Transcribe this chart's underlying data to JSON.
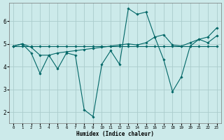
{
  "xlabel": "Humidex (Indice chaleur)",
  "bg_color": "#cceaea",
  "grid_color": "#aacccc",
  "line_color": "#006666",
  "xlim": [
    -0.5,
    23.5
  ],
  "ylim": [
    1.5,
    6.8
  ],
  "yticks": [
    2,
    3,
    4,
    5,
    6
  ],
  "xticks": [
    0,
    1,
    2,
    3,
    4,
    5,
    6,
    7,
    8,
    9,
    10,
    11,
    12,
    13,
    14,
    15,
    16,
    17,
    18,
    19,
    20,
    21,
    22,
    23
  ],
  "lines": [
    {
      "x": [
        0,
        1,
        2,
        3,
        4,
        5,
        6,
        7,
        8,
        9,
        10,
        11,
        12,
        13,
        14,
        15,
        16,
        17,
        18,
        19,
        20,
        21,
        22,
        23
      ],
      "y": [
        4.9,
        4.9,
        4.9,
        4.9,
        4.9,
        4.9,
        4.9,
        4.9,
        4.9,
        4.9,
        4.9,
        4.9,
        4.9,
        4.9,
        4.9,
        4.9,
        4.9,
        4.9,
        4.9,
        4.9,
        4.9,
        4.9,
        4.9,
        4.9
      ]
    },
    {
      "x": [
        0,
        1,
        2,
        3,
        4,
        5,
        6,
        7,
        8,
        9,
        10,
        11,
        12,
        13,
        14,
        15,
        16,
        17,
        18,
        19,
        20,
        21,
        22,
        23
      ],
      "y": [
        4.9,
        5.0,
        4.85,
        4.5,
        4.5,
        4.6,
        4.65,
        4.7,
        4.75,
        4.8,
        4.85,
        4.9,
        4.95,
        5.0,
        4.95,
        5.05,
        5.3,
        5.4,
        4.95,
        4.9,
        5.05,
        5.2,
        5.3,
        5.7
      ]
    },
    {
      "x": [
        0,
        1,
        2,
        3,
        4,
        5,
        6,
        7,
        8,
        9,
        10,
        11,
        12,
        13,
        14,
        15,
        16,
        17,
        18,
        19,
        20,
        21,
        22,
        23
      ],
      "y": [
        4.9,
        5.0,
        4.6,
        3.7,
        4.5,
        3.9,
        4.6,
        4.5,
        2.1,
        1.8,
        4.1,
        4.7,
        4.1,
        6.55,
        6.3,
        6.4,
        5.3,
        4.3,
        2.9,
        3.55,
        4.9,
        5.2,
        5.05,
        5.35
      ]
    }
  ]
}
